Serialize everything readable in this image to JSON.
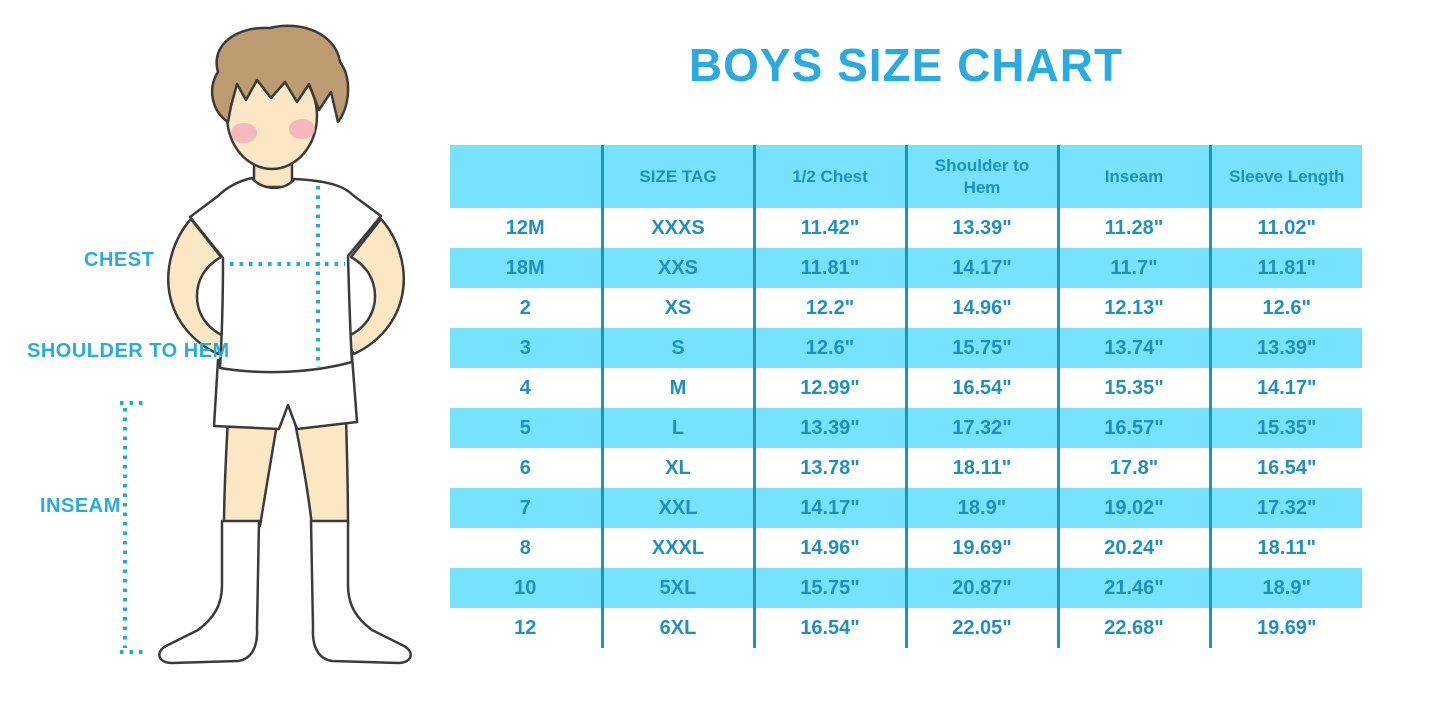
{
  "title": "BOYS SIZE CHART",
  "figure": {
    "labels": {
      "chest": "CHEST",
      "shoulder_to_hem": "SHOULDER TO HEM",
      "inseam": "INSEAM"
    }
  },
  "chart_data": {
    "type": "table",
    "title": "BOYS SIZE CHART",
    "columns": [
      "",
      "SIZE TAG",
      "1/2 Chest",
      "Shoulder to Hem",
      "Inseam",
      "Sleeve Length"
    ],
    "rows": [
      [
        "12M",
        "XXXS",
        "11.42\"",
        "13.39\"",
        "11.28\"",
        "11.02\""
      ],
      [
        "18M",
        "XXS",
        "11.81\"",
        "14.17\"",
        "11.7\"",
        "11.81\""
      ],
      [
        "2",
        "XS",
        "12.2\"",
        "14.96\"",
        "12.13\"",
        "12.6\""
      ],
      [
        "3",
        "S",
        "12.6\"",
        "15.75\"",
        "13.74\"",
        "13.39\""
      ],
      [
        "4",
        "M",
        "12.99\"",
        "16.54\"",
        "15.35\"",
        "14.17\""
      ],
      [
        "5",
        "L",
        "13.39\"",
        "17.32\"",
        "16.57\"",
        "15.35\""
      ],
      [
        "6",
        "XL",
        "13.78\"",
        "18.11\"",
        "17.8\"",
        "16.54\""
      ],
      [
        "7",
        "XXL",
        "14.17\"",
        "18.9\"",
        "19.02\"",
        "17.32\""
      ],
      [
        "8",
        "XXXL",
        "14.96\"",
        "19.69\"",
        "20.24\"",
        "18.11\""
      ],
      [
        "10",
        "5XL",
        "15.75\"",
        "20.87\"",
        "21.46\"",
        "18.9\""
      ],
      [
        "12",
        "6XL",
        "16.54\"",
        "22.05\"",
        "22.68\"",
        "19.69\""
      ]
    ],
    "layout": {
      "stripe_pattern": "header and every second data row highlighted",
      "grid": "vertical column separators only"
    }
  },
  "colors": {
    "accent_blue": "#29ABE2",
    "row_stripe": "#76E2FB",
    "table_text": "#1F8FC1",
    "grid_line": "#1B95C4",
    "skin": "#FBE7C4",
    "hair": "#BD9B70",
    "outline": "#3B3B3B",
    "blush": "#F2A9BA"
  }
}
